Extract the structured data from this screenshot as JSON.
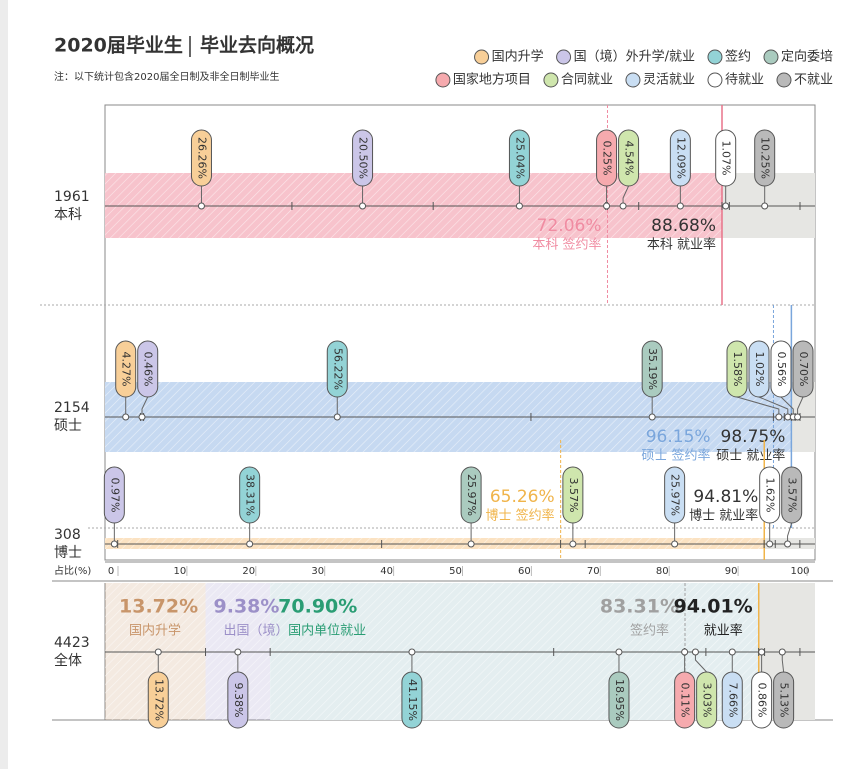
{
  "chart_data": {
    "type": "strip",
    "title": "2020届毕业生",
    "subtitle": "毕业去向概况",
    "note": "注：以下统计包含2020届全日制及非全日制毕业生",
    "series": [
      {
        "name": "国内升学",
        "color": "#f8cf98"
      },
      {
        "name": "国（境）外升学/就业",
        "color": "#cbc6e8"
      },
      {
        "name": "签约",
        "color": "#93d3d6"
      },
      {
        "name": "定向委培",
        "color": "#aacbbf"
      },
      {
        "name": "国家地方项目",
        "color": "#f6aaae"
      },
      {
        "name": "合同就业",
        "color": "#cfe6ad"
      },
      {
        "name": "灵活就业",
        "color": "#c9def3"
      },
      {
        "name": "待就业",
        "color": "#ffffff"
      },
      {
        "name": "不就业",
        "color": "#b9b9b9"
      }
    ],
    "xlabel": "占比(%)",
    "xlim": [
      0,
      100
    ],
    "xticks": [
      0,
      10,
      20,
      30,
      40,
      50,
      60,
      70,
      80,
      90,
      100
    ],
    "groups": [
      {
        "count": 1961,
        "name": "本科",
        "color": "#f7c3cc",
        "values": [
          26.26,
          20.5,
          25.04,
          null,
          0.25,
          4.54,
          12.09,
          1.07,
          10.25
        ],
        "value_labels": [
          "26.26%",
          "20.50%",
          "25.04%",
          null,
          "0.25%",
          "4.54%",
          "12.09%",
          "1.07%",
          "10.25%"
        ],
        "rates": [
          {
            "name": "本科 签约率",
            "value": 72.06,
            "value_label": "72.06%",
            "color": "#f08ca2"
          },
          {
            "name": "本科 就业率",
            "value": 88.68,
            "value_label": "88.68%",
            "color": "#333333"
          }
        ]
      },
      {
        "count": 2154,
        "name": "硕士",
        "color": "#c6d9f1",
        "values": [
          4.27,
          0.46,
          56.22,
          35.19,
          null,
          1.58,
          1.02,
          0.56,
          0.7
        ],
        "value_labels": [
          "4.27%",
          "0.46%",
          "56.22%",
          "35.19%",
          null,
          "1.58%",
          "1.02%",
          "0.56%",
          "0.70%"
        ],
        "rates": [
          {
            "name": "硕士 签约率",
            "value": 96.15,
            "value_label": "96.15%",
            "color": "#7aa6dc"
          },
          {
            "name": "硕士 就业率",
            "value": 98.75,
            "value_label": "98.75%",
            "color": "#333333"
          }
        ]
      },
      {
        "count": 308,
        "name": "博士",
        "color": "#fbe2c2",
        "values": [
          null,
          0.97,
          38.31,
          25.97,
          null,
          3.57,
          25.97,
          1.62,
          3.57
        ],
        "value_labels": [
          null,
          "0.97%",
          "38.31%",
          "25.97%",
          null,
          "3.57%",
          "25.97%",
          "1.62%",
          "3.57%"
        ],
        "rates": [
          {
            "name": "博士 签约率",
            "value": 65.26,
            "value_label": "65.26%",
            "color": "#f0b44a"
          },
          {
            "name": "博士 就业率",
            "value": 94.81,
            "value_label": "94.81%",
            "color": "#333333"
          }
        ]
      },
      {
        "count": 4423,
        "name": "全体",
        "color": "#e4eef0",
        "values": [
          13.72,
          9.38,
          41.15,
          18.95,
          0.11,
          3.03,
          7.66,
          0.86,
          5.13
        ],
        "value_labels": [
          "13.72%",
          "9.38%",
          "41.15%",
          "18.95%",
          "0.11%",
          "3.03%",
          "7.66%",
          "0.86%",
          "5.13%"
        ],
        "rates": [
          {
            "name": "国内升学",
            "value": 13.72,
            "value_label": "13.72%",
            "color": "#c8956a"
          },
          {
            "name": "出国（境）",
            "value": 9.38,
            "value_label": "9.38%",
            "color": "#9c90c8"
          },
          {
            "name": "国内单位就业",
            "value": 70.9,
            "value_label": "70.90%",
            "color": "#2a9d74"
          },
          {
            "name": "签约率",
            "value": 83.31,
            "value_label": "83.31%",
            "color": "#a0a0a0"
          },
          {
            "name": "就业率",
            "value": 94.01,
            "value_label": "94.01%",
            "color": "#222222"
          }
        ]
      }
    ]
  }
}
